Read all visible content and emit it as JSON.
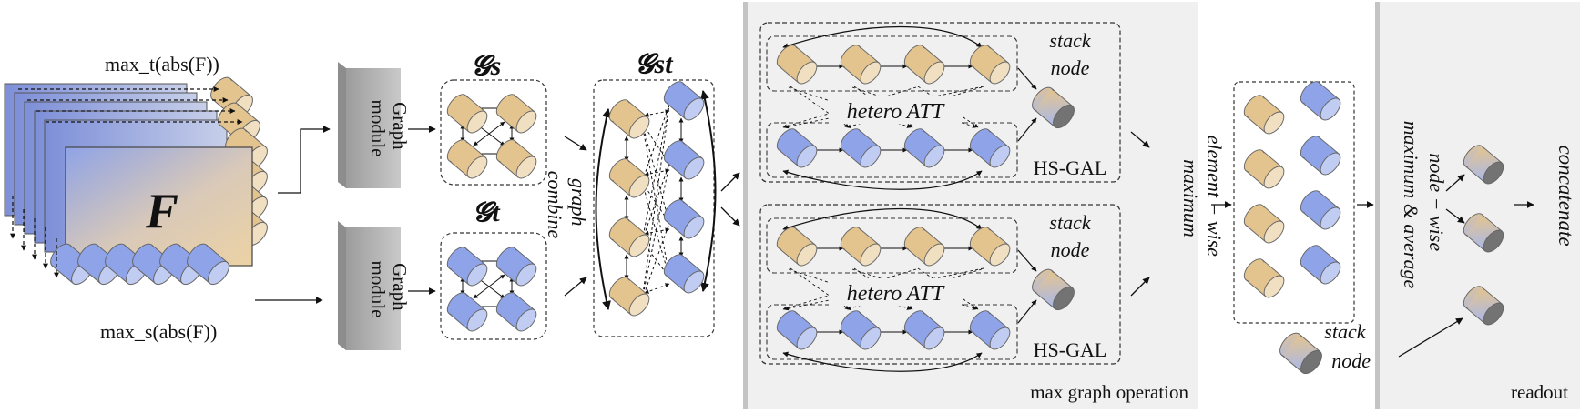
{
  "colors": {
    "feature_blue": "#aab8ea",
    "feature_tan": "#e8cfa0",
    "blue_cylinder": "#8ea3e8",
    "tan_cylinder": "#e3c48f",
    "panel_gray": "#f0f0f0",
    "module_gray": "#b8b8b8"
  },
  "input": {
    "tensor_label": "F",
    "time_max_label": "max_t(abs(F))",
    "space_max_label": "max_s(abs(F))"
  },
  "graph_modules": {
    "top_label": [
      "Graph",
      "module"
    ],
    "bottom_label": [
      "Graph",
      "module"
    ]
  },
  "graphs": {
    "spatial": "𝓖s",
    "temporal": "𝓖t",
    "spatiotemporal": "𝓖st"
  },
  "combine_label": [
    "graph",
    "combine"
  ],
  "max_graph_panel": {
    "caption": "max graph operation",
    "blocks": [
      {
        "attention_label": "hetero ATT",
        "stack_label": [
          "stack",
          "node"
        ],
        "gal_label": "HS-GAL"
      },
      {
        "attention_label": "hetero ATT",
        "stack_label": [
          "stack",
          "node"
        ],
        "gal_label": "HS-GAL"
      }
    ],
    "elementwise_label": [
      "element − wise",
      "maximum"
    ]
  },
  "stack_node_label": [
    "stack",
    "node"
  ],
  "readout_panel": {
    "caption": "readout",
    "nodewise_label": [
      "node − wise",
      "maximum & average"
    ],
    "concat_label": "concatenate"
  }
}
